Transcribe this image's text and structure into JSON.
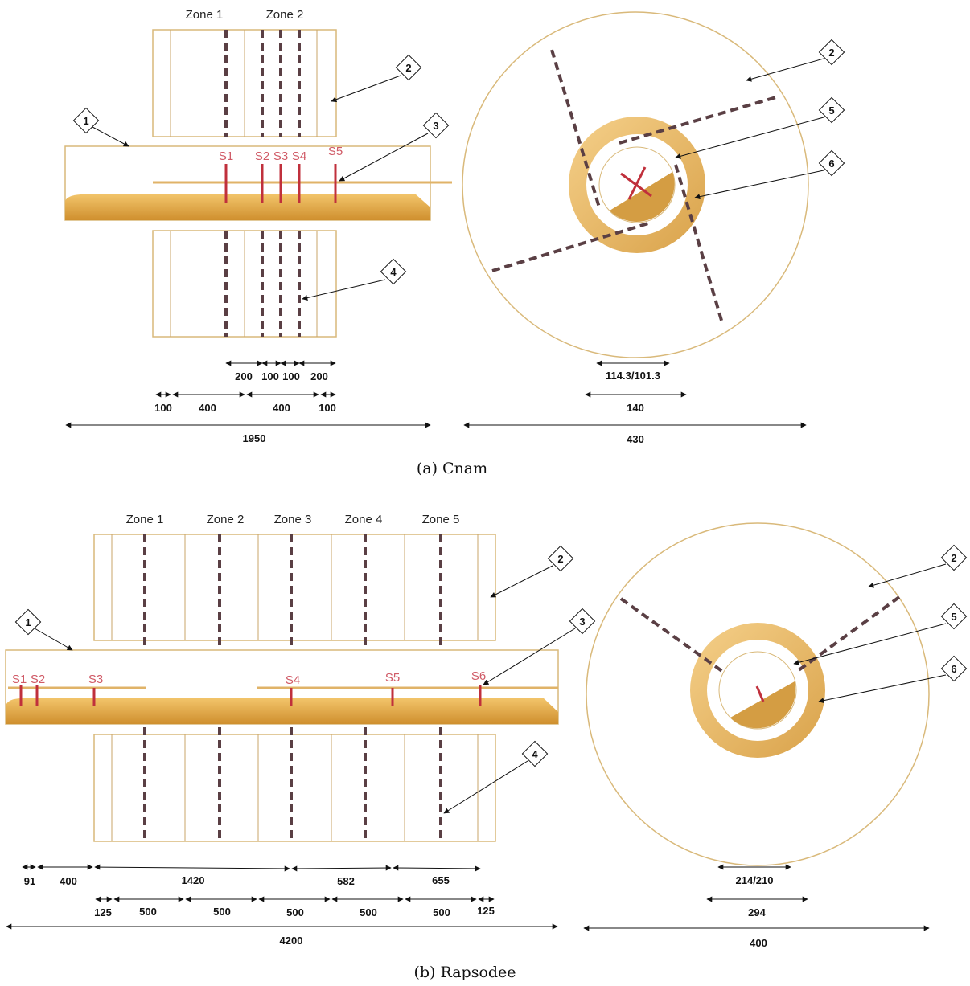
{
  "figure_a": {
    "caption": "(a) Cnam",
    "zones": [
      "Zone 1",
      "Zone 2"
    ],
    "sensors": [
      "S1",
      "S2",
      "S3",
      "S4",
      "S5"
    ],
    "callouts": [
      "1",
      "2",
      "3",
      "4",
      "2",
      "5",
      "6"
    ],
    "dims_row1": [
      "200",
      "100",
      "100",
      "200"
    ],
    "dims_row2": [
      "100",
      "400",
      "400",
      "100"
    ],
    "dim_total": "1950",
    "cross_dims": [
      "114.3/101.3",
      "140",
      "430"
    ]
  },
  "figure_b": {
    "caption": "(b) Rapsodee",
    "zones": [
      "Zone 1",
      "Zone 2",
      "Zone 3",
      "Zone 4",
      "Zone 5"
    ],
    "sensors": [
      "S1",
      "S2",
      "S3",
      "S4",
      "S5",
      "S6"
    ],
    "callouts": [
      "1",
      "2",
      "3",
      "4",
      "2",
      "5",
      "6"
    ],
    "dims_row1": [
      "91",
      "400",
      "1420",
      "582",
      "655"
    ],
    "dims_row2": [
      "125",
      "500",
      "500",
      "500",
      "500",
      "500",
      "125"
    ],
    "dim_total": "4200",
    "cross_dims": [
      "214/210",
      "294",
      "400"
    ]
  },
  "colors": {
    "frame": "#d9b97a",
    "tube_gold": "#e0a844",
    "dashed_line": "#5a3f44",
    "sensor_red": "#c0303c",
    "sensor_label": "#d05a66"
  }
}
